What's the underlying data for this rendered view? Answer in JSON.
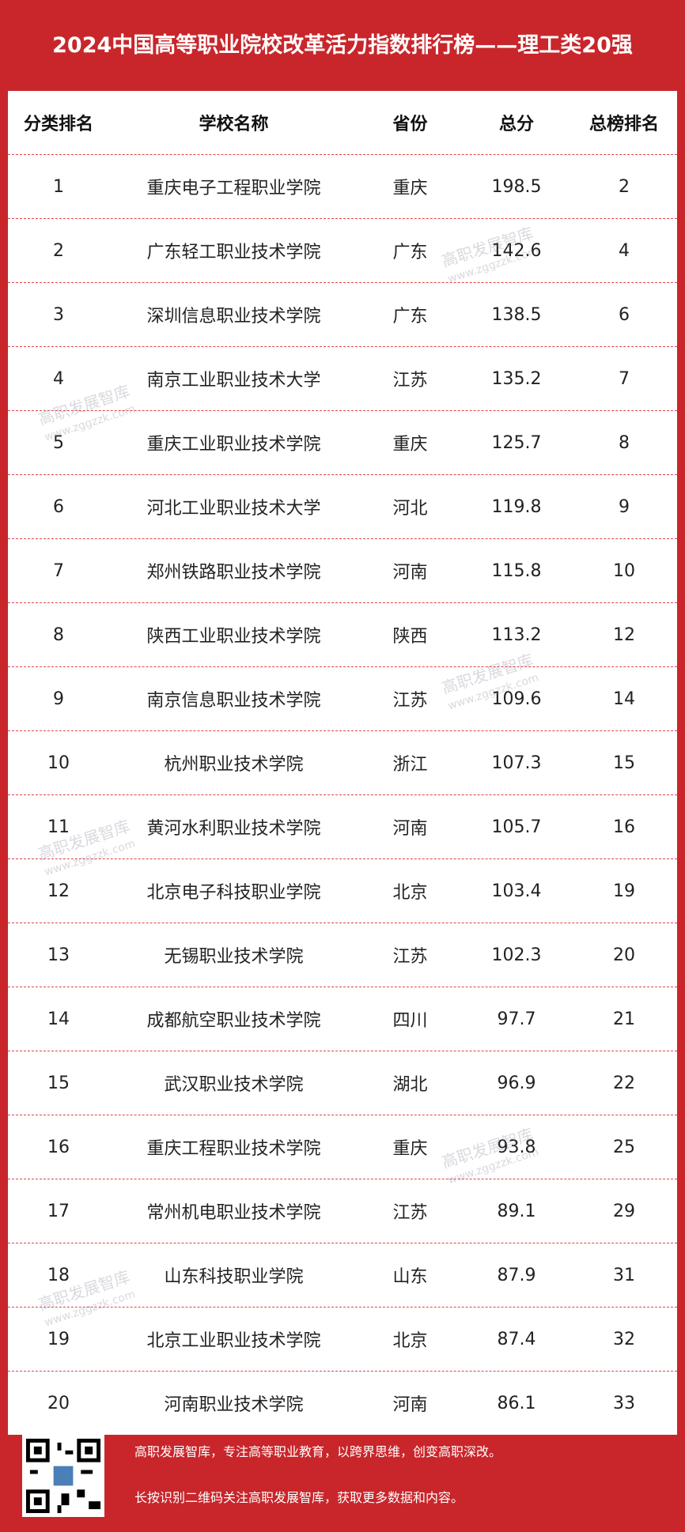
{
  "header": {
    "title": "2024中国高等职业院校改革活力指数排行榜——理工类20强"
  },
  "table": {
    "columns": [
      "分类排名",
      "学校名称",
      "省份",
      "总分",
      "总榜排名"
    ],
    "rows": [
      [
        "1",
        "重庆电子工程职业学院",
        "重庆",
        "198.5",
        "2"
      ],
      [
        "2",
        "广东轻工职业技术学院",
        "广东",
        "142.6",
        "4"
      ],
      [
        "3",
        "深圳信息职业技术学院",
        "广东",
        "138.5",
        "6"
      ],
      [
        "4",
        "南京工业职业技术大学",
        "江苏",
        "135.2",
        "7"
      ],
      [
        "5",
        "重庆工业职业技术学院",
        "重庆",
        "125.7",
        "8"
      ],
      [
        "6",
        "河北工业职业技术大学",
        "河北",
        "119.8",
        "9"
      ],
      [
        "7",
        "郑州铁路职业技术学院",
        "河南",
        "115.8",
        "10"
      ],
      [
        "8",
        "陕西工业职业技术学院",
        "陕西",
        "113.2",
        "12"
      ],
      [
        "9",
        "南京信息职业技术学院",
        "江苏",
        "109.6",
        "14"
      ],
      [
        "10",
        "杭州职业技术学院",
        "浙江",
        "107.3",
        "15"
      ],
      [
        "11",
        "黄河水利职业技术学院",
        "河南",
        "105.7",
        "16"
      ],
      [
        "12",
        "北京电子科技职业学院",
        "北京",
        "103.4",
        "19"
      ],
      [
        "13",
        "无锡职业技术学院",
        "江苏",
        "102.3",
        "20"
      ],
      [
        "14",
        "成都航空职业技术学院",
        "四川",
        "97.7",
        "21"
      ],
      [
        "15",
        "武汉职业技术学院",
        "湖北",
        "96.9",
        "22"
      ],
      [
        "16",
        "重庆工程职业技术学院",
        "重庆",
        "93.8",
        "25"
      ],
      [
        "17",
        "常州机电职业技术学院",
        "江苏",
        "89.1",
        "29"
      ],
      [
        "18",
        "山东科技职业学院",
        "山东",
        "87.9",
        "31"
      ],
      [
        "19",
        "北京工业职业技术学院",
        "北京",
        "87.4",
        "32"
      ],
      [
        "20",
        "河南职业技术学院",
        "河南",
        "86.1",
        "33"
      ]
    ]
  },
  "watermark": {
    "name": "高职发展智库",
    "url": "www.zggzzk.com"
  },
  "footer": {
    "lines": [
      "高职发展智库，专注高等职业教育，以跨界思维，创变高职深改。",
      "长按识别二维码关注高职发展智库，获取更多数据和内容。"
    ]
  }
}
